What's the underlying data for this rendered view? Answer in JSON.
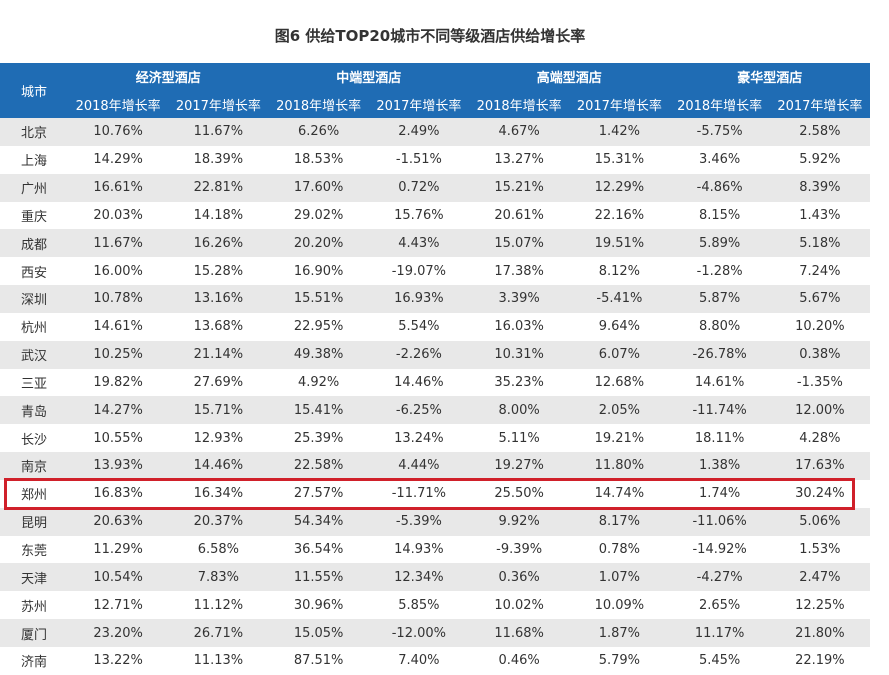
{
  "title": "图6 供给TOP20城市不同等级酒店供给增长率",
  "table": {
    "corner": "城市",
    "groups": [
      "经济型酒店",
      "中端型酒店",
      "高端型酒店",
      "豪华型酒店"
    ],
    "subheaders": [
      "2018年增长率",
      "2017年增长率",
      "2018年增长率",
      "2017年增长率",
      "2018年增长率",
      "2017年增长率",
      "2018年增长率",
      "2017年增长率"
    ],
    "rows": [
      [
        "北京",
        "10.76%",
        "11.67%",
        "6.26%",
        "2.49%",
        "4.67%",
        "1.42%",
        "-5.75%",
        "2.58%"
      ],
      [
        "上海",
        "14.29%",
        "18.39%",
        "18.53%",
        "-1.51%",
        "13.27%",
        "15.31%",
        "3.46%",
        "5.92%"
      ],
      [
        "广州",
        "16.61%",
        "22.81%",
        "17.60%",
        "0.72%",
        "15.21%",
        "12.29%",
        "-4.86%",
        "8.39%"
      ],
      [
        "重庆",
        "20.03%",
        "14.18%",
        "29.02%",
        "15.76%",
        "20.61%",
        "22.16%",
        "8.15%",
        "1.43%"
      ],
      [
        "成都",
        "11.67%",
        "16.26%",
        "20.20%",
        "4.43%",
        "15.07%",
        "19.51%",
        "5.89%",
        "5.18%"
      ],
      [
        "西安",
        "16.00%",
        "15.28%",
        "16.90%",
        "-19.07%",
        "17.38%",
        "8.12%",
        "-1.28%",
        "7.24%"
      ],
      [
        "深圳",
        "10.78%",
        "13.16%",
        "15.51%",
        "16.93%",
        "3.39%",
        "-5.41%",
        "5.87%",
        "5.67%"
      ],
      [
        "杭州",
        "14.61%",
        "13.68%",
        "22.95%",
        "5.54%",
        "16.03%",
        "9.64%",
        "8.80%",
        "10.20%"
      ],
      [
        "武汉",
        "10.25%",
        "21.14%",
        "49.38%",
        "-2.26%",
        "10.31%",
        "6.07%",
        "-26.78%",
        "0.38%"
      ],
      [
        "三亚",
        "19.82%",
        "27.69%",
        "4.92%",
        "14.46%",
        "35.23%",
        "12.68%",
        "14.61%",
        "-1.35%"
      ],
      [
        "青岛",
        "14.27%",
        "15.71%",
        "15.41%",
        "-6.25%",
        "8.00%",
        "2.05%",
        "-11.74%",
        "12.00%"
      ],
      [
        "长沙",
        "10.55%",
        "12.93%",
        "25.39%",
        "13.24%",
        "5.11%",
        "19.21%",
        "18.11%",
        "4.28%"
      ],
      [
        "南京",
        "13.93%",
        "14.46%",
        "22.58%",
        "4.44%",
        "19.27%",
        "11.80%",
        "1.38%",
        "17.63%"
      ],
      [
        "郑州",
        "16.83%",
        "16.34%",
        "27.57%",
        "-11.71%",
        "25.50%",
        "14.74%",
        "1.74%",
        "30.24%"
      ],
      [
        "昆明",
        "20.63%",
        "20.37%",
        "54.34%",
        "-5.39%",
        "9.92%",
        "8.17%",
        "-11.06%",
        "5.06%"
      ],
      [
        "东莞",
        "11.29%",
        "6.58%",
        "36.54%",
        "14.93%",
        "-9.39%",
        "0.78%",
        "-14.92%",
        "1.53%"
      ],
      [
        "天津",
        "10.54%",
        "7.83%",
        "11.55%",
        "12.34%",
        "0.36%",
        "1.07%",
        "-4.27%",
        "2.47%"
      ],
      [
        "苏州",
        "12.71%",
        "11.12%",
        "30.96%",
        "5.85%",
        "10.02%",
        "10.09%",
        "2.65%",
        "12.25%"
      ],
      [
        "厦门",
        "23.20%",
        "26.71%",
        "15.05%",
        "-12.00%",
        "11.68%",
        "1.87%",
        "11.17%",
        "21.80%"
      ],
      [
        "济南",
        "13.22%",
        "11.13%",
        "87.51%",
        "7.40%",
        "0.46%",
        "5.79%",
        "5.45%",
        "22.19%"
      ]
    ]
  }
}
